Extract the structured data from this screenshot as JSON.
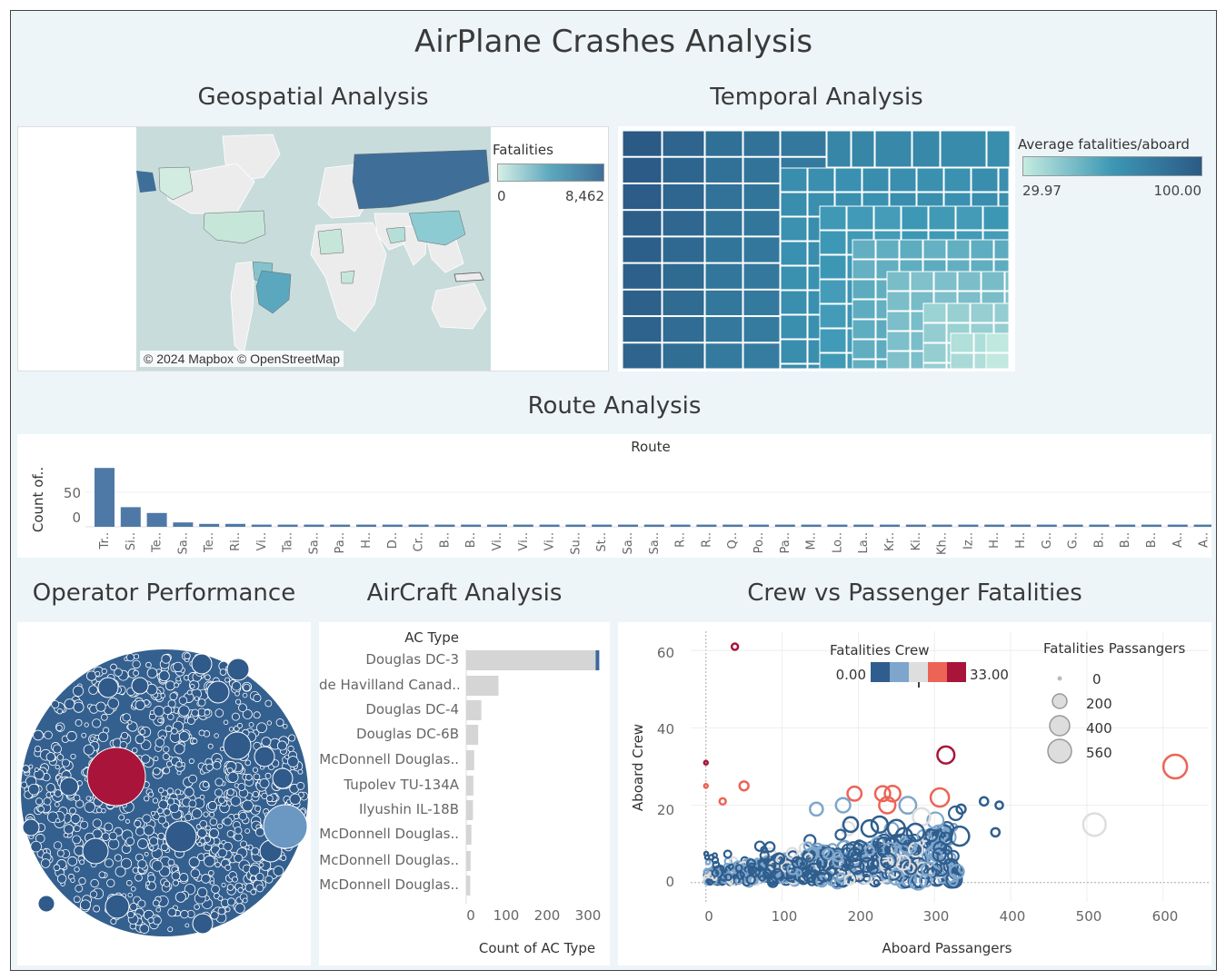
{
  "dashboard": {
    "title": "AirPlane Crashes Analysis",
    "sections": {
      "geo": "Geospatial Analysis",
      "temporal": "Temporal Analysis",
      "route": "Route Analysis",
      "operator": "Operator Performance",
      "aircraft": "AirCraft Analysis",
      "crew": "Crew vs Passenger Fatalities"
    }
  },
  "geo_map": {
    "legend_title": "Fatalities",
    "legend_min": "0",
    "legend_max": "8,462",
    "attribution": "© 2024 Mapbox © OpenStreetMap",
    "colors": {
      "low": "#d6efe6",
      "high": "#3f6f99",
      "water": "#c9dcdc",
      "land": "#eeeeee"
    }
  },
  "temporal": {
    "legend_title": "Average fatalities/aboard",
    "legend_min": "29.97",
    "legend_max": "100.00",
    "colors": {
      "low": "#c4ebe0",
      "mid": "#3c97b5",
      "high": "#2b5a85"
    }
  },
  "route_chart": {
    "header": "Route",
    "y_label": "Count of..",
    "y_ticks": [
      "50",
      "0"
    ]
  },
  "aircraft": {
    "column_header": "AC Type",
    "x_label": "Count of AC Type",
    "x_ticks": [
      "0",
      "100",
      "200",
      "300"
    ],
    "bar_color": "#d5d5d5",
    "highlight_color": "#3e679c"
  },
  "crew_vs_pax": {
    "x_label": "Aboard Passangers",
    "y_label": "Aboard Crew",
    "x_ticks": [
      "0",
      "100",
      "200",
      "300",
      "400",
      "500",
      "600"
    ],
    "y_ticks": [
      "0",
      "20",
      "40",
      "60"
    ],
    "color_legend_title": "Fatalities Crew",
    "color_legend_min": "0.00",
    "color_legend_max": "33.00",
    "color_steps": [
      "#2f5e8e",
      "#7ea6cc",
      "#dedede",
      "#ec6455",
      "#a9153a"
    ],
    "size_legend_title": "Fatalities Passangers",
    "size_legend_items": [
      "0",
      "200",
      "400",
      "560"
    ]
  },
  "operator": {
    "colors": {
      "base": "#2f5a8a",
      "highlight_red": "#a9153a",
      "highlight_light": "#6b97c3"
    }
  },
  "chart_data": [
    {
      "type": "bar",
      "title": "Route",
      "ylabel": "Count of..",
      "categories": [
        "Tr..",
        "Si..",
        "Te..",
        "Sa..",
        "Te..",
        "Ri..",
        "Vi..",
        "Ta..",
        "Sa..",
        "Pa..",
        "H..",
        "D..",
        "Cr..",
        "B..",
        "B..",
        "Vi..",
        "Vi..",
        "Vi..",
        "Su..",
        "St..",
        "Sa..",
        "Sa..",
        "R..",
        "R..",
        "Q..",
        "Po..",
        "Pa..",
        "M..",
        "Lo..",
        "La..",
        "Kr..",
        "Ki..",
        "Kh..",
        "Iz..",
        "H..",
        "H..",
        "G..",
        "G..",
        "B..",
        "B..",
        "B..",
        "A..",
        "A.."
      ],
      "values": [
        81,
        27,
        19,
        6,
        4,
        4,
        3,
        3,
        3,
        3,
        3,
        3,
        3,
        3,
        3,
        3,
        3,
        3,
        3,
        3,
        3,
        3,
        3,
        3,
        3,
        3,
        3,
        3,
        3,
        3,
        3,
        3,
        3,
        3,
        3,
        3,
        3,
        3,
        3,
        3,
        3,
        3,
        3
      ],
      "ylim": [
        0,
        90
      ]
    },
    {
      "type": "bar",
      "title": "AC Type",
      "xlabel": "Count of AC Type",
      "categories": [
        "Douglas DC-3",
        "de Havilland Canad..",
        "Douglas DC-4",
        "Douglas DC-6B",
        "McDonnell Douglas..",
        "Tupolev TU-134A",
        "Ilyushin IL-18B",
        "McDonnell Douglas..",
        "McDonnell Douglas..",
        "McDonnell Douglas.."
      ],
      "values": [
        334,
        81,
        38,
        30,
        20,
        18,
        17,
        13,
        11,
        10
      ],
      "highlight_values": [
        18,
        0,
        0,
        0,
        0,
        0,
        0,
        0,
        0,
        0
      ],
      "xlim": [
        0,
        340
      ]
    },
    {
      "type": "scatter",
      "xlabel": "Aboard Passangers",
      "ylabel": "Aboard Crew",
      "xlim": [
        -20,
        660
      ],
      "ylim": [
        -5,
        65
      ],
      "points": [
        {
          "x": 38,
          "y": 61,
          "crew_fat": 33,
          "pax_fat": 10
        },
        {
          "x": 315,
          "y": 33,
          "crew_fat": 33,
          "pax_fat": 250
        },
        {
          "x": 616,
          "y": 30,
          "crew_fat": 25,
          "pax_fat": 560
        },
        {
          "x": 307,
          "y": 22,
          "crew_fat": 25,
          "pax_fat": 300
        },
        {
          "x": 510,
          "y": 15,
          "crew_fat": 15,
          "pax_fat": 500
        },
        {
          "x": 195,
          "y": 23,
          "crew_fat": 25,
          "pax_fat": 150
        },
        {
          "x": 232,
          "y": 23,
          "crew_fat": 25,
          "pax_fat": 180
        },
        {
          "x": 245,
          "y": 23,
          "crew_fat": 25,
          "pax_fat": 200
        },
        {
          "x": 238,
          "y": 20,
          "crew_fat": 25,
          "pax_fat": 220
        },
        {
          "x": 50,
          "y": 25,
          "crew_fat": 25,
          "pax_fat": 40
        },
        {
          "x": 0,
          "y": 31,
          "crew_fat": 30,
          "pax_fat": 0
        },
        {
          "x": 0,
          "y": 25,
          "crew_fat": 25,
          "pax_fat": 0
        },
        {
          "x": 22,
          "y": 21,
          "crew_fat": 25,
          "pax_fat": 10
        },
        {
          "x": 145,
          "y": 19,
          "crew_fat": 12,
          "pax_fat": 120
        },
        {
          "x": 180,
          "y": 20,
          "crew_fat": 10,
          "pax_fat": 160
        },
        {
          "x": 265,
          "y": 20,
          "crew_fat": 10,
          "pax_fat": 240
        },
        {
          "x": 283,
          "y": 17,
          "crew_fat": 14,
          "pax_fat": 260
        },
        {
          "x": 333,
          "y": 12,
          "crew_fat": 3,
          "pax_fat": 330
        },
        {
          "x": 228,
          "y": 15,
          "crew_fat": 5,
          "pax_fat": 220
        },
        {
          "x": 190,
          "y": 15,
          "crew_fat": 3,
          "pax_fat": 170
        },
        {
          "x": 250,
          "y": 14,
          "crew_fat": 4,
          "pax_fat": 250
        },
        {
          "x": 215,
          "y": 14,
          "crew_fat": 2,
          "pax_fat": 230
        },
        {
          "x": 260,
          "y": 12,
          "crew_fat": 5,
          "pax_fat": 220
        },
        {
          "x": 275,
          "y": 13,
          "crew_fat": 4,
          "pax_fat": 250
        },
        {
          "x": 335,
          "y": 19,
          "crew_fat": 0,
          "pax_fat": 40
        },
        {
          "x": 365,
          "y": 21,
          "crew_fat": 0,
          "pax_fat": 30
        },
        {
          "x": 380,
          "y": 13,
          "crew_fat": 0,
          "pax_fat": 30
        },
        {
          "x": 385,
          "y": 20,
          "crew_fat": 0,
          "pax_fat": 20
        }
      ]
    }
  ]
}
